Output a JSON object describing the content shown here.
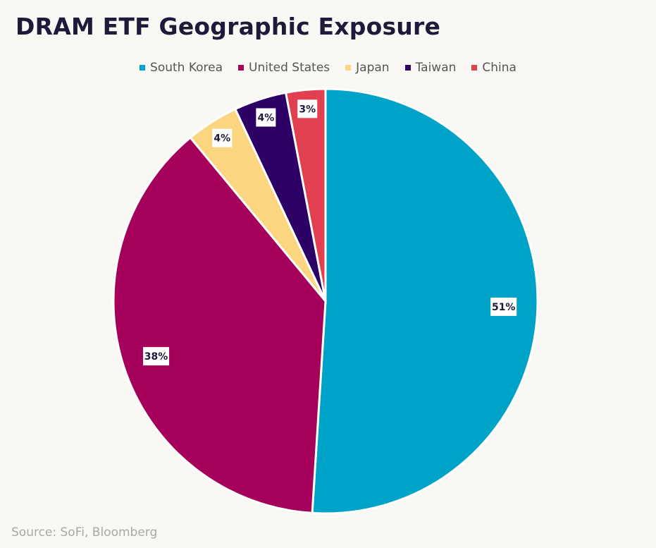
{
  "title": "DRAM ETF Geographic Exposure",
  "source": "Source: SoFi, Bloomberg",
  "chart_data": {
    "type": "pie",
    "title": "DRAM ETF Geographic Exposure",
    "legend_position": "top",
    "slices": [
      {
        "name": "South Korea",
        "value": 51,
        "label": "51%",
        "color": "#00a3c8"
      },
      {
        "name": "United States",
        "value": 38,
        "label": "38%",
        "color": "#a5005a"
      },
      {
        "name": "Japan",
        "value": 4,
        "label": "4%",
        "color": "#fcd580"
      },
      {
        "name": "Taiwan",
        "value": 4,
        "label": "4%",
        "color": "#2d0066"
      },
      {
        "name": "China",
        "value": 3,
        "label": "3%",
        "color": "#e04050"
      }
    ]
  }
}
